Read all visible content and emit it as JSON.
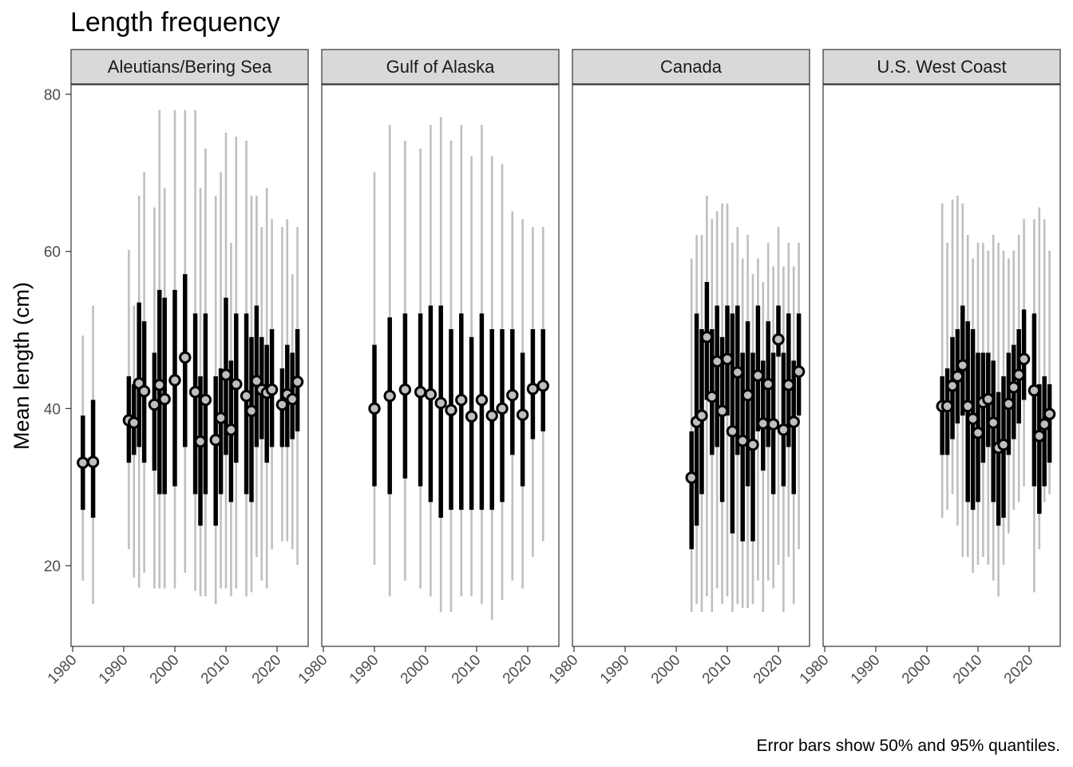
{
  "title": "Length frequency",
  "caption": "Error bars show 50% and 95% quantiles.",
  "chart_data": {
    "type": "scatter",
    "title": "Length frequency",
    "ylabel": "Mean length (cm)",
    "xlabel": "",
    "xlim": [
      1980,
      2026
    ],
    "ylim": [
      10,
      81
    ],
    "x_ticks": [
      1980,
      1990,
      2000,
      2010,
      2020
    ],
    "y_ticks": [
      20,
      40,
      60,
      80
    ],
    "grid": false,
    "caption": "Error bars show 50% and 95% quantiles.",
    "colors": {
      "point_fill": "#bfbfbf",
      "point_stroke": "#000000",
      "bar_50": "#000000",
      "bar_95": "#bfbfbf",
      "strip_fill": "#d9d9d9",
      "panel_border": "#333333"
    },
    "panels": [
      {
        "name": "Aleutians/Bering Sea",
        "points": [
          {
            "year": 1982,
            "mean": 33.1,
            "q25": 27.1,
            "q75": 39.1,
            "q025": 18.1,
            "q975": 49.3
          },
          {
            "year": 1984,
            "mean": 33.2,
            "q25": 26.1,
            "q75": 41.1,
            "q025": 15.1,
            "q975": 53.1
          },
          {
            "year": 1991,
            "mean": 38.5,
            "q25": 33.1,
            "q75": 44.1,
            "q025": 22.1,
            "q975": 60.2
          },
          {
            "year": 1992,
            "mean": 38.2,
            "q25": 34.1,
            "q75": 43.1,
            "q025": 18.5,
            "q975": 53.1
          },
          {
            "year": 1993,
            "mean": 43.2,
            "q25": 35.1,
            "q75": 53.5,
            "q025": 17.2,
            "q975": 67.1
          },
          {
            "year": 1994,
            "mean": 42.2,
            "q25": 33.1,
            "q75": 51.1,
            "q025": 19.1,
            "q975": 70.1
          },
          {
            "year": 1996,
            "mean": 40.5,
            "q25": 32.1,
            "q75": 47.1,
            "q025": 17.1,
            "q975": 65.6
          },
          {
            "year": 1997,
            "mean": 43.0,
            "q25": 29.1,
            "q75": 55.1,
            "q025": 17.1,
            "q975": 78.0
          },
          {
            "year": 1998,
            "mean": 41.2,
            "q25": 29.1,
            "q75": 54.1,
            "q025": 17.1,
            "q975": 68.1
          },
          {
            "year": 2000,
            "mean": 43.6,
            "q25": 30.1,
            "q75": 55.1,
            "q025": 17.1,
            "q975": 78.0
          },
          {
            "year": 2002,
            "mean": 46.5,
            "q25": 35.1,
            "q75": 57.1,
            "q025": 19.1,
            "q975": 78.0
          },
          {
            "year": 2004,
            "mean": 42.1,
            "q25": 29.1,
            "q75": 52.1,
            "q025": 16.8,
            "q975": 78.0
          },
          {
            "year": 2005,
            "mean": 35.8,
            "q25": 25.1,
            "q75": 44.1,
            "q025": 16.1,
            "q975": 68.1
          },
          {
            "year": 2006,
            "mean": 41.1,
            "q25": 29.1,
            "q75": 52.1,
            "q025": 16.1,
            "q975": 73.1
          },
          {
            "year": 2008,
            "mean": 36.0,
            "q25": 25.1,
            "q75": 44.1,
            "q025": 15.1,
            "q975": 67.1
          },
          {
            "year": 2009,
            "mean": 38.8,
            "q25": 29.1,
            "q75": 45.1,
            "q025": 17.1,
            "q975": 70.1
          },
          {
            "year": 2010,
            "mean": 44.3,
            "q25": 34.1,
            "q75": 54.1,
            "q025": 17.1,
            "q975": 75.1
          },
          {
            "year": 2011,
            "mean": 37.3,
            "q25": 28.1,
            "q75": 46.1,
            "q025": 16.1,
            "q975": 61.1
          },
          {
            "year": 2012,
            "mean": 43.1,
            "q25": 33.1,
            "q75": 52.1,
            "q025": 17.1,
            "q975": 74.6
          },
          {
            "year": 2014,
            "mean": 41.6,
            "q25": 29.1,
            "q75": 52.1,
            "q025": 16.1,
            "q975": 74.1
          },
          {
            "year": 2015,
            "mean": 39.7,
            "q25": 28.1,
            "q75": 49.1,
            "q025": 16.6,
            "q975": 67.1
          },
          {
            "year": 2016,
            "mean": 43.5,
            "q25": 35.1,
            "q75": 53.1,
            "q025": 21.1,
            "q975": 67.1
          },
          {
            "year": 2017,
            "mean": 42.4,
            "q25": 36.1,
            "q75": 49.1,
            "q025": 18.1,
            "q975": 63.1
          },
          {
            "year": 2018,
            "mean": 42.0,
            "q25": 33.1,
            "q75": 48.1,
            "q025": 17.1,
            "q975": 68.1
          },
          {
            "year": 2019,
            "mean": 42.4,
            "q25": 35.1,
            "q75": 50.1,
            "q025": 22.1,
            "q975": 64.1
          },
          {
            "year": 2021,
            "mean": 40.5,
            "q25": 35.1,
            "q75": 45.1,
            "q025": 23.1,
            "q975": 63.1
          },
          {
            "year": 2022,
            "mean": 41.8,
            "q25": 35.1,
            "q75": 48.1,
            "q025": 23.1,
            "q975": 64.1
          },
          {
            "year": 2023,
            "mean": 41.2,
            "q25": 36.1,
            "q75": 47.1,
            "q025": 22.1,
            "q975": 57.1
          },
          {
            "year": 2024,
            "mean": 43.4,
            "q25": 37.1,
            "q75": 50.1,
            "q025": 20.1,
            "q975": 63.1
          }
        ]
      },
      {
        "name": "Gulf of Alaska",
        "points": [
          {
            "year": 1990,
            "mean": 40.0,
            "q25": 30.1,
            "q75": 48.1,
            "q025": 20.1,
            "q975": 70.1
          },
          {
            "year": 1993,
            "mean": 41.6,
            "q25": 29.1,
            "q75": 51.6,
            "q025": 16.1,
            "q975": 76.1
          },
          {
            "year": 1996,
            "mean": 42.4,
            "q25": 31.1,
            "q75": 52.1,
            "q025": 18.1,
            "q975": 74.1
          },
          {
            "year": 1999,
            "mean": 42.1,
            "q25": 30.1,
            "q75": 52.1,
            "q025": 17.1,
            "q975": 73.1
          },
          {
            "year": 2001,
            "mean": 41.8,
            "q25": 28.1,
            "q75": 53.1,
            "q025": 16.1,
            "q975": 76.1
          },
          {
            "year": 2003,
            "mean": 40.7,
            "q25": 26.1,
            "q75": 53.1,
            "q025": 14.1,
            "q975": 77.1
          },
          {
            "year": 2005,
            "mean": 39.8,
            "q25": 27.1,
            "q75": 50.1,
            "q025": 14.1,
            "q975": 74.1
          },
          {
            "year": 2007,
            "mean": 41.1,
            "q25": 27.1,
            "q75": 52.1,
            "q025": 16.1,
            "q975": 76.1
          },
          {
            "year": 2009,
            "mean": 39.0,
            "q25": 27.1,
            "q75": 49.1,
            "q025": 16.1,
            "q975": 72.1
          },
          {
            "year": 2011,
            "mean": 41.1,
            "q25": 27.1,
            "q75": 52.1,
            "q025": 15.1,
            "q975": 76.1
          },
          {
            "year": 2013,
            "mean": 39.1,
            "q25": 27.1,
            "q75": 50.1,
            "q025": 13.1,
            "q975": 72.1
          },
          {
            "year": 2015,
            "mean": 40.0,
            "q25": 28.1,
            "q75": 50.1,
            "q025": 15.6,
            "q975": 71.1
          },
          {
            "year": 2017,
            "mean": 41.7,
            "q25": 34.1,
            "q75": 50.1,
            "q025": 18.1,
            "q975": 65.1
          },
          {
            "year": 2019,
            "mean": 39.2,
            "q25": 30.1,
            "q75": 47.1,
            "q025": 17.1,
            "q975": 64.1
          },
          {
            "year": 2021,
            "mean": 42.5,
            "q25": 36.1,
            "q75": 50.1,
            "q025": 21.1,
            "q975": 63.1
          },
          {
            "year": 2023,
            "mean": 42.9,
            "q25": 37.1,
            "q75": 50.1,
            "q025": 23.1,
            "q975": 63.1
          }
        ]
      },
      {
        "name": "Canada",
        "points": [
          {
            "year": 2003,
            "mean": 31.2,
            "q25": 22.1,
            "q75": 37.1,
            "q025": 14.1,
            "q975": 59.1
          },
          {
            "year": 2004,
            "mean": 38.3,
            "q25": 25.1,
            "q75": 52.1,
            "q025": 15.1,
            "q975": 62.1
          },
          {
            "year": 2005,
            "mean": 39.1,
            "q25": 29.1,
            "q75": 50.1,
            "q025": 14.1,
            "q975": 62.1
          },
          {
            "year": 2006,
            "mean": 49.1,
            "q25": 41.1,
            "q75": 56.1,
            "q025": 16.1,
            "q975": 67.1
          },
          {
            "year": 2007,
            "mean": 41.5,
            "q25": 34.1,
            "q75": 50.1,
            "q025": 14.1,
            "q975": 64.1
          },
          {
            "year": 2008,
            "mean": 46.0,
            "q25": 35.1,
            "q75": 53.1,
            "q025": 17.1,
            "q975": 65.1
          },
          {
            "year": 2009,
            "mean": 39.7,
            "q25": 28.1,
            "q75": 49.1,
            "q025": 15.1,
            "q975": 66.1
          },
          {
            "year": 2010,
            "mean": 46.3,
            "q25": 39.1,
            "q75": 53.1,
            "q025": 16.1,
            "q975": 66.1
          },
          {
            "year": 2011,
            "mean": 37.1,
            "q25": 24.1,
            "q75": 52.1,
            "q025": 14.1,
            "q975": 61.1
          },
          {
            "year": 2012,
            "mean": 44.6,
            "q25": 34.1,
            "q75": 53.1,
            "q025": 15.1,
            "q975": 63.1
          },
          {
            "year": 2013,
            "mean": 35.9,
            "q25": 23.1,
            "q75": 47.1,
            "q025": 14.6,
            "q975": 59.1
          },
          {
            "year": 2014,
            "mean": 41.7,
            "q25": 30.1,
            "q75": 51.1,
            "q025": 14.6,
            "q975": 62.1
          },
          {
            "year": 2015,
            "mean": 35.4,
            "q25": 23.1,
            "q75": 47.1,
            "q025": 15.1,
            "q975": 57.1
          },
          {
            "year": 2016,
            "mean": 44.2,
            "q25": 37.1,
            "q75": 53.1,
            "q025": 18.1,
            "q975": 59.1
          },
          {
            "year": 2017,
            "mean": 38.1,
            "q25": 32.1,
            "q75": 46.1,
            "q025": 14.1,
            "q975": 56.1
          },
          {
            "year": 2018,
            "mean": 43.1,
            "q25": 35.1,
            "q75": 51.1,
            "q025": 18.1,
            "q975": 61.1
          },
          {
            "year": 2019,
            "mean": 38.0,
            "q25": 29.1,
            "q75": 47.1,
            "q025": 17.1,
            "q975": 58.1
          },
          {
            "year": 2020,
            "mean": 48.8,
            "q25": 46.6,
            "q75": 53.1,
            "q025": 20.1,
            "q975": 63.1
          },
          {
            "year": 2021,
            "mean": 37.3,
            "q25": 30.1,
            "q75": 47.1,
            "q025": 14.1,
            "q975": 58.1
          },
          {
            "year": 2022,
            "mean": 43.0,
            "q25": 35.1,
            "q75": 52.1,
            "q025": 21.1,
            "q975": 61.1
          },
          {
            "year": 2023,
            "mean": 38.3,
            "q25": 29.1,
            "q75": 46.1,
            "q025": 15.1,
            "q975": 58.1
          },
          {
            "year": 2024,
            "mean": 44.7,
            "q25": 39.1,
            "q75": 52.1,
            "q025": 22.1,
            "q975": 61.1
          }
        ]
      },
      {
        "name": "U.S. West Coast",
        "points": [
          {
            "year": 2003,
            "mean": 40.3,
            "q25": 34.1,
            "q75": 44.1,
            "q025": 26.1,
            "q975": 66.1
          },
          {
            "year": 2004,
            "mean": 40.3,
            "q25": 34.1,
            "q75": 45.1,
            "q025": 27.1,
            "q975": 61.1
          },
          {
            "year": 2005,
            "mean": 42.9,
            "q25": 36.1,
            "q75": 49.1,
            "q025": 29.1,
            "q975": 66.6
          },
          {
            "year": 2006,
            "mean": 44.1,
            "q25": 38.1,
            "q75": 50.1,
            "q025": 25.1,
            "q975": 67.1
          },
          {
            "year": 2007,
            "mean": 45.5,
            "q25": 39.1,
            "q75": 53.1,
            "q025": 21.1,
            "q975": 66.1
          },
          {
            "year": 2008,
            "mean": 40.3,
            "q25": 28.1,
            "q75": 51.1,
            "q025": 21.1,
            "q975": 62.1
          },
          {
            "year": 2009,
            "mean": 38.7,
            "q25": 27.1,
            "q75": 50.1,
            "q025": 19.1,
            "q975": 59.1
          },
          {
            "year": 2010,
            "mean": 36.9,
            "q25": 28.1,
            "q75": 47.1,
            "q025": 20.1,
            "q975": 61.1
          },
          {
            "year": 2011,
            "mean": 40.8,
            "q25": 33.1,
            "q75": 47.1,
            "q025": 21.1,
            "q975": 61.1
          },
          {
            "year": 2012,
            "mean": 41.2,
            "q25": 35.1,
            "q75": 47.1,
            "q025": 20.1,
            "q975": 60.1
          },
          {
            "year": 2013,
            "mean": 38.2,
            "q25": 28.1,
            "q75": 46.1,
            "q025": 18.1,
            "q975": 62.1
          },
          {
            "year": 2014,
            "mean": 35.0,
            "q25": 25.1,
            "q75": 42.1,
            "q025": 16.1,
            "q975": 61.1
          },
          {
            "year": 2015,
            "mean": 35.4,
            "q25": 26.1,
            "q75": 44.1,
            "q025": 20.1,
            "q975": 60.1
          },
          {
            "year": 2016,
            "mean": 40.6,
            "q25": 34.1,
            "q75": 47.1,
            "q025": 24.1,
            "q975": 59.1
          },
          {
            "year": 2017,
            "mean": 42.7,
            "q25": 36.1,
            "q75": 48.1,
            "q025": 27.1,
            "q975": 60.1
          },
          {
            "year": 2018,
            "mean": 44.3,
            "q25": 38.1,
            "q75": 50.1,
            "q025": 28.1,
            "q975": 62.1
          },
          {
            "year": 2019,
            "mean": 46.3,
            "q25": 41.1,
            "q75": 52.6,
            "q025": 30.1,
            "q975": 64.1
          },
          {
            "year": 2021,
            "mean": 42.3,
            "q25": 30.1,
            "q75": 52.1,
            "q025": 16.6,
            "q975": 64.1
          },
          {
            "year": 2022,
            "mean": 36.5,
            "q25": 26.6,
            "q75": 43.1,
            "q025": 22.1,
            "q975": 65.6
          },
          {
            "year": 2023,
            "mean": 38.0,
            "q25": 30.1,
            "q75": 44.1,
            "q025": 28.1,
            "q975": 64.1
          },
          {
            "year": 2024,
            "mean": 39.3,
            "q25": 33.1,
            "q75": 43.1,
            "q025": 29.1,
            "q975": 60.1
          }
        ]
      }
    ]
  }
}
